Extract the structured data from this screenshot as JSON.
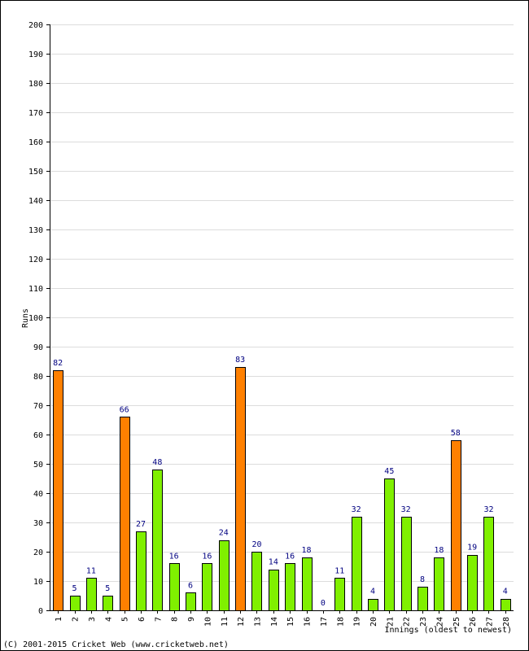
{
  "chart_data": {
    "type": "bar",
    "categories": [
      "1",
      "2",
      "3",
      "4",
      "5",
      "6",
      "7",
      "8",
      "9",
      "10",
      "11",
      "12",
      "13",
      "14",
      "15",
      "16",
      "17",
      "18",
      "19",
      "20",
      "21",
      "22",
      "23",
      "24",
      "25",
      "26",
      "27",
      "28"
    ],
    "values": [
      82,
      5,
      11,
      5,
      66,
      27,
      48,
      16,
      6,
      16,
      24,
      83,
      20,
      14,
      16,
      18,
      0,
      11,
      32,
      4,
      45,
      32,
      8,
      18,
      58,
      19,
      32,
      4
    ],
    "highlight": [
      true,
      false,
      false,
      false,
      true,
      false,
      false,
      false,
      false,
      false,
      false,
      true,
      false,
      false,
      false,
      false,
      false,
      false,
      false,
      false,
      false,
      false,
      false,
      false,
      true,
      false,
      false,
      false
    ],
    "xlabel": "Innings (oldest to newest)",
    "ylabel": "Runs",
    "ylim": [
      0,
      200
    ],
    "yticks": [
      0,
      10,
      20,
      30,
      40,
      50,
      60,
      70,
      80,
      90,
      100,
      110,
      120,
      130,
      140,
      150,
      160,
      170,
      180,
      190,
      200
    ],
    "grid": true,
    "colors": {
      "bar": "#80f000",
      "bar_highlight": "#ff8000",
      "bar_stroke": "#000000",
      "label_text": "#000080",
      "grid": "#dcdcdc",
      "axis": "#000000"
    }
  },
  "footer": {
    "copyright": "(C) 2001-2015 Cricket Web (www.cricketweb.net)"
  }
}
